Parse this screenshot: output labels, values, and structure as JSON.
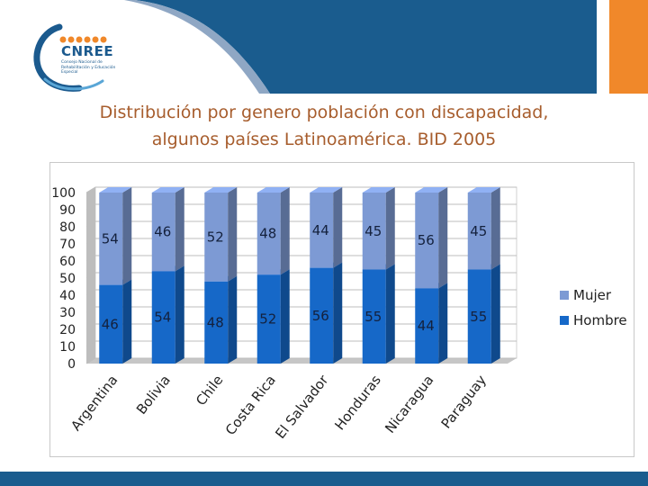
{
  "colors": {
    "header": "#1a5c8e",
    "accent_orange": "#f0882a",
    "title": "#a75d2d",
    "mujer": "#7d9ad4",
    "hombre": "#1668c8",
    "bottom_bar": "#1a5c8e"
  },
  "logo": {
    "name": "CNREE",
    "subtitle": "Consejo Nacional de Rehabilitación y Educación Especial"
  },
  "slide": {
    "title_line1": "Distribución por genero población con discapacidad,",
    "title_line2": "algunos países Latinoamérica. BID 2005"
  },
  "chart_data": {
    "type": "bar",
    "stacked": true,
    "three_d": true,
    "categories": [
      "Argentina",
      "Bolivia",
      "Chile",
      "Costa Rica",
      "El Salvador",
      "Honduras",
      "Nicaragua",
      "Paraguay"
    ],
    "series": [
      {
        "name": "Hombre",
        "values": [
          46,
          54,
          48,
          52,
          56,
          55,
          44,
          55
        ]
      },
      {
        "name": "Mujer",
        "values": [
          54,
          46,
          52,
          48,
          44,
          45,
          56,
          45
        ]
      }
    ],
    "yticks": [
      "0",
      "10",
      "20",
      "30",
      "40",
      "50",
      "60",
      "70",
      "80",
      "90",
      "100"
    ],
    "ylim": [
      0,
      100
    ],
    "grid": true,
    "legend_position": "right",
    "legend_entries": [
      "Mujer",
      "Hombre"
    ]
  }
}
